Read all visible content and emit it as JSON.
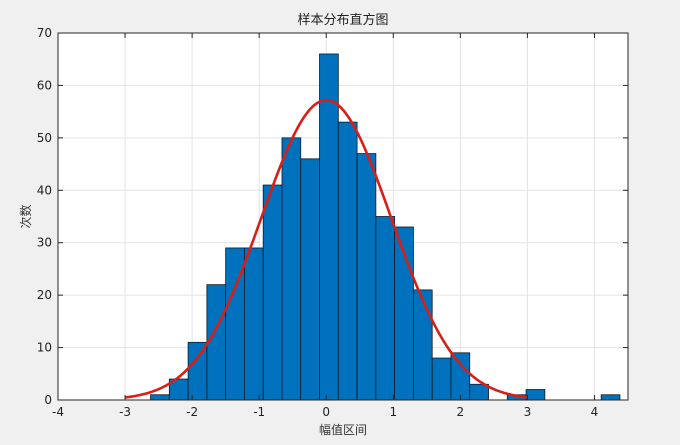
{
  "chart_data": {
    "type": "bar",
    "title": "样本分布直方图",
    "xlabel": "幅值区间",
    "ylabel": "次数",
    "xlim": [
      -4,
      4.5
    ],
    "ylim": [
      0,
      70
    ],
    "xticks": [
      -4,
      -3,
      -2,
      -1,
      0,
      1,
      2,
      3,
      4
    ],
    "yticks": [
      0,
      10,
      20,
      30,
      40,
      50,
      60,
      70
    ],
    "grid": true,
    "bin_width": 0.28,
    "bins": [
      {
        "left": -2.62,
        "right": -2.34,
        "count": 1
      },
      {
        "left": -2.34,
        "right": -2.06,
        "count": 4
      },
      {
        "left": -2.06,
        "right": -1.78,
        "count": 11
      },
      {
        "left": -1.78,
        "right": -1.5,
        "count": 22
      },
      {
        "left": -1.5,
        "right": -1.22,
        "count": 29
      },
      {
        "left": -1.22,
        "right": -0.94,
        "count": 29
      },
      {
        "left": -0.94,
        "right": -0.66,
        "count": 41
      },
      {
        "left": -0.66,
        "right": -0.38,
        "count": 50
      },
      {
        "left": -0.38,
        "right": -0.1,
        "count": 46
      },
      {
        "left": -0.1,
        "right": 0.18,
        "count": 66
      },
      {
        "left": 0.18,
        "right": 0.46,
        "count": 53
      },
      {
        "left": 0.46,
        "right": 0.74,
        "count": 47
      },
      {
        "left": 0.74,
        "right": 1.02,
        "count": 35
      },
      {
        "left": 1.02,
        "right": 1.3,
        "count": 33
      },
      {
        "left": 1.3,
        "right": 1.58,
        "count": 21
      },
      {
        "left": 1.58,
        "right": 1.86,
        "count": 8
      },
      {
        "left": 1.86,
        "right": 2.14,
        "count": 9
      },
      {
        "left": 2.14,
        "right": 2.42,
        "count": 3
      },
      {
        "left": 2.42,
        "right": 2.7,
        "count": 0
      },
      {
        "left": 2.7,
        "right": 2.98,
        "count": 1
      },
      {
        "left": 2.98,
        "right": 3.26,
        "count": 2
      },
      {
        "left": 3.26,
        "right": 3.54,
        "count": 0
      },
      {
        "left": 3.54,
        "right": 3.82,
        "count": 0
      },
      {
        "left": 3.82,
        "right": 4.1,
        "count": 0
      },
      {
        "left": 4.1,
        "right": 4.38,
        "count": 1
      }
    ],
    "fit_curve": {
      "type": "normal",
      "mean": 0.0,
      "std": 0.97,
      "peak": 57.2,
      "x_range": [
        -3,
        3
      ],
      "color": "#d91e18"
    },
    "bar_color": "#0072bd",
    "bar_edge_color": "#0b1a2a"
  }
}
